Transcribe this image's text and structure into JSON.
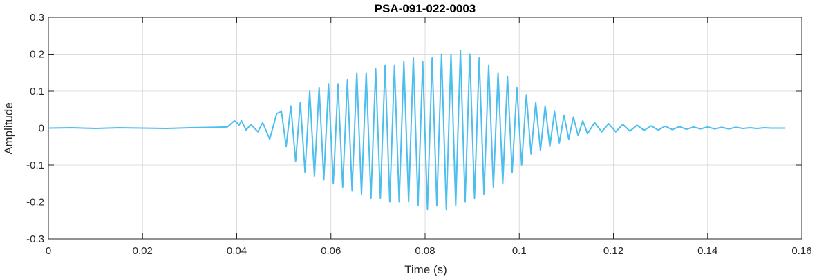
{
  "chart_data": {
    "type": "line",
    "title": "PSA-091-022-0003",
    "xlabel": "Time (s)",
    "ylabel": "Amplitude",
    "xlim": [
      0,
      0.16
    ],
    "ylim": [
      -0.3,
      0.3
    ],
    "xticks": [
      0,
      0.02,
      0.04,
      0.06,
      0.08,
      0.1,
      0.12,
      0.14,
      0.16
    ],
    "xtick_labels": [
      "0",
      "0.02",
      "0.04",
      "0.06",
      "0.08",
      "0.1",
      "0.12",
      "0.14",
      "0.16"
    ],
    "yticks": [
      -0.3,
      -0.2,
      -0.1,
      0,
      0.1,
      0.2,
      0.3
    ],
    "ytick_labels": [
      "-0.3",
      "-0.2",
      "-0.1",
      "0",
      "0.1",
      "0.2",
      "0.3"
    ],
    "grid": true,
    "line_color": "#4DBEEE",
    "series": [
      {
        "x": [
          0,
          0.005,
          0.01,
          0.015,
          0.02,
          0.025,
          0.03,
          0.035,
          0.038,
          0.0395,
          0.04,
          0.0405,
          0.041,
          0.042,
          0.043,
          0.0445,
          0.0455,
          0.047,
          0.0485,
          0.0495,
          0.0505,
          0.0515,
          0.0525,
          0.0535,
          0.0545,
          0.0555,
          0.0565,
          0.0575,
          0.0585,
          0.0595,
          0.0605,
          0.0615,
          0.0625,
          0.0635,
          0.0645,
          0.0655,
          0.0665,
          0.0675,
          0.0685,
          0.0695,
          0.0705,
          0.0715,
          0.0725,
          0.0735,
          0.0745,
          0.0755,
          0.0765,
          0.0775,
          0.0785,
          0.0795,
          0.0805,
          0.0815,
          0.0825,
          0.0835,
          0.0845,
          0.0855,
          0.0865,
          0.0875,
          0.0885,
          0.0895,
          0.0905,
          0.0915,
          0.0925,
          0.0935,
          0.0945,
          0.0955,
          0.0965,
          0.0975,
          0.0985,
          0.0995,
          0.1005,
          0.1015,
          0.1025,
          0.1035,
          0.1045,
          0.1055,
          0.1065,
          0.1075,
          0.1085,
          0.1095,
          0.1105,
          0.1115,
          0.1125,
          0.1135,
          0.1145,
          0.116,
          0.1175,
          0.119,
          0.1205,
          0.122,
          0.1235,
          0.125,
          0.1265,
          0.128,
          0.1295,
          0.131,
          0.1325,
          0.134,
          0.1355,
          0.137,
          0.1385,
          0.14,
          0.1415,
          0.143,
          0.1445,
          0.146,
          0.1475,
          0.149,
          0.1505,
          0.152,
          0.1535,
          0.155,
          0.1565
        ],
        "y": [
          0,
          0.001,
          -0.001,
          0.001,
          0,
          -0.001,
          0.001,
          0.002,
          0.003,
          0.02,
          0.015,
          0.008,
          0.02,
          -0.005,
          0.01,
          -0.01,
          0.015,
          -0.03,
          0.04,
          0.045,
          -0.05,
          0.06,
          -0.09,
          0.07,
          -0.12,
          0.1,
          -0.13,
          0.11,
          -0.14,
          0.12,
          -0.15,
          0.12,
          -0.16,
          0.13,
          -0.17,
          0.15,
          -0.18,
          0.15,
          -0.19,
          0.16,
          -0.19,
          0.17,
          -0.2,
          0.17,
          -0.2,
          0.18,
          -0.2,
          0.19,
          -0.21,
          0.18,
          -0.22,
          0.19,
          -0.21,
          0.2,
          -0.22,
          0.2,
          -0.21,
          0.21,
          -0.2,
          0.2,
          -0.19,
          0.19,
          -0.18,
          0.17,
          -0.16,
          0.15,
          -0.15,
          0.14,
          -0.12,
          0.11,
          -0.1,
          0.09,
          -0.07,
          0.07,
          -0.06,
          0.06,
          -0.05,
          0.045,
          -0.04,
          0.035,
          -0.03,
          0.03,
          -0.02,
          0.02,
          -0.015,
          0.015,
          -0.01,
          0.012,
          -0.01,
          0.01,
          -0.008,
          0.008,
          -0.006,
          0.006,
          -0.005,
          0.005,
          -0.004,
          0.004,
          -0.003,
          0.003,
          -0.002,
          0.003,
          -0.002,
          0.002,
          -0.002,
          0.002,
          -0.001,
          0.001,
          -0.001,
          0.001,
          0,
          0,
          0
        ]
      }
    ]
  }
}
